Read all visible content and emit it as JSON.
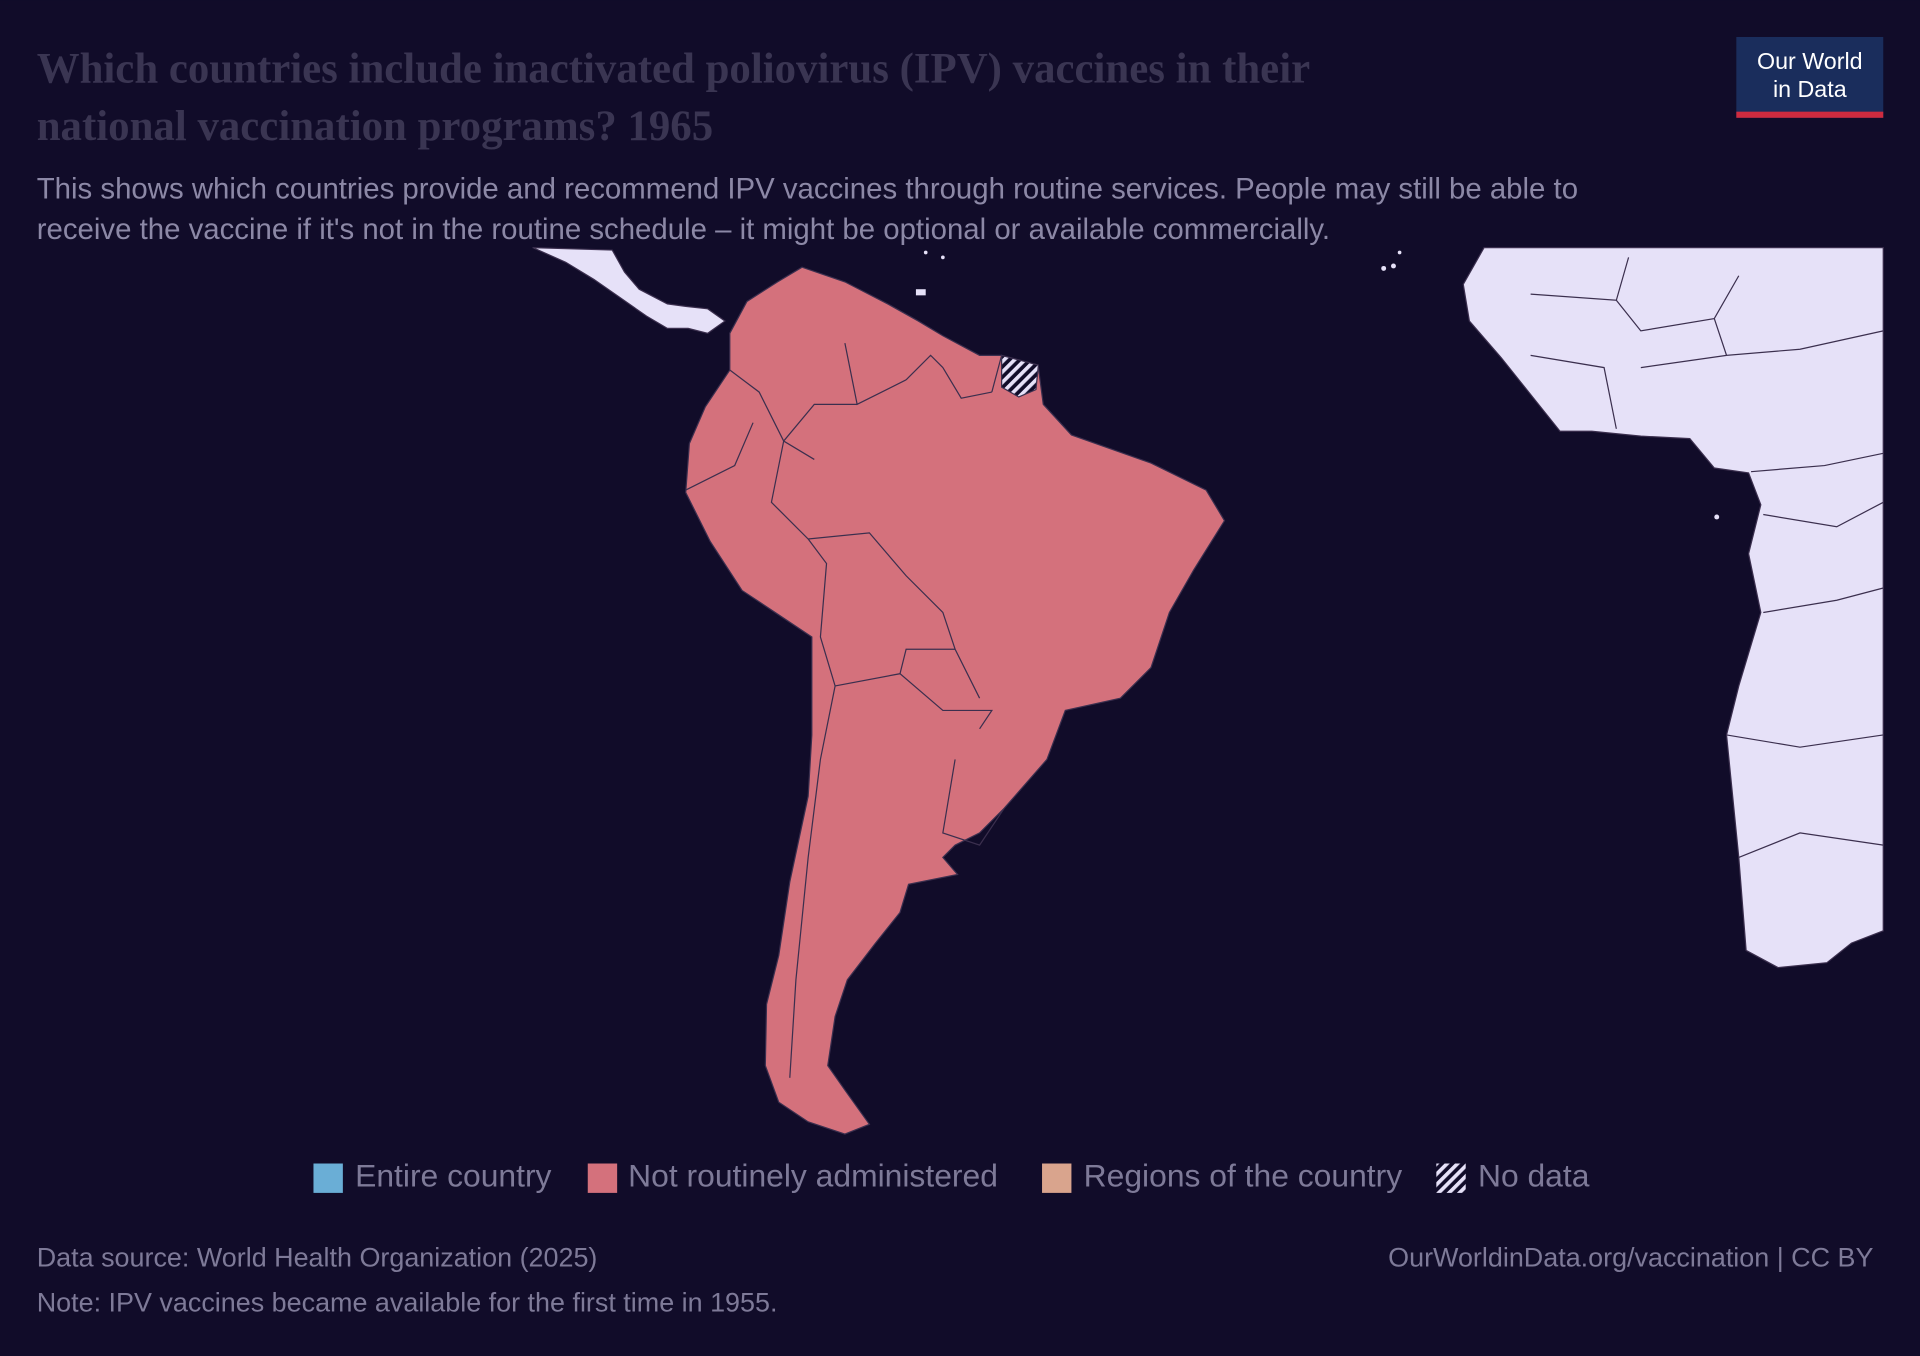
{
  "header": {
    "title": [
      "Which countries include inactivated poliovirus (IPV) vaccines in their",
      "national vaccination programs? 1965"
    ],
    "subtitle": [
      "This shows which countries provide and recommend IPV vaccines through routine services. People may still be able to",
      "receive the vaccine if it's not in the routine schedule – it might be optional or available commercially."
    ]
  },
  "logo": [
    "Our World",
    "in Data"
  ],
  "legend": [
    {
      "label": "Entire country",
      "color": "#6aaed6"
    },
    {
      "label": "Not routinely administered",
      "color": "#d4717c"
    },
    {
      "label": "Regions of the country",
      "color": "#d9a48d"
    },
    {
      "label": "No data",
      "color": "hatch"
    }
  ],
  "footer": {
    "source": "Data source: World Health Organization (2025)",
    "url": "OurWorldinData.org/vaccination | CC BY",
    "note": "Note: IPV vaccines became available for the first time in 1955."
  }
}
